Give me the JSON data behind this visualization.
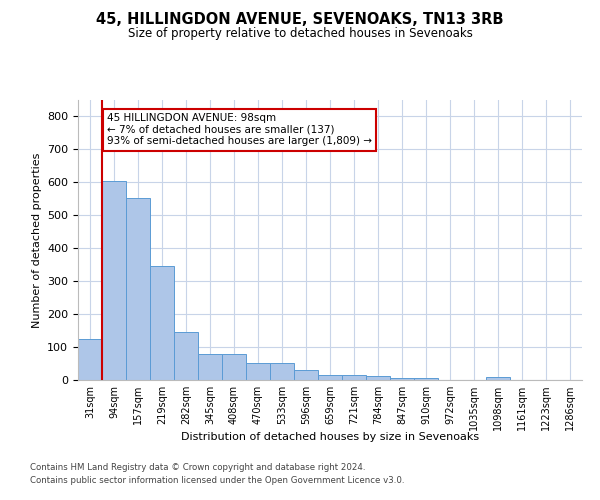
{
  "title1": "45, HILLINGDON AVENUE, SEVENOAKS, TN13 3RB",
  "title2": "Size of property relative to detached houses in Sevenoaks",
  "xlabel": "Distribution of detached houses by size in Sevenoaks",
  "ylabel": "Number of detached properties",
  "categories": [
    "31sqm",
    "94sqm",
    "157sqm",
    "219sqm",
    "282sqm",
    "345sqm",
    "408sqm",
    "470sqm",
    "533sqm",
    "596sqm",
    "659sqm",
    "721sqm",
    "784sqm",
    "847sqm",
    "910sqm",
    "972sqm",
    "1035sqm",
    "1098sqm",
    "1161sqm",
    "1223sqm",
    "1286sqm"
  ],
  "values": [
    123,
    603,
    553,
    347,
    147,
    78,
    78,
    52,
    52,
    30,
    15,
    14,
    13,
    7,
    7,
    0,
    0,
    8,
    0,
    0,
    0
  ],
  "bar_color": "#aec6e8",
  "bar_edge_color": "#5b9bd5",
  "red_line_x": 1,
  "annotation_title": "45 HILLINGDON AVENUE: 98sqm",
  "annotation_line2": "← 7% of detached houses are smaller (137)",
  "annotation_line3": "93% of semi-detached houses are larger (1,809) →",
  "annotation_box_color": "#ffffff",
  "annotation_box_edge": "#cc0000",
  "footer1": "Contains HM Land Registry data © Crown copyright and database right 2024.",
  "footer2": "Contains public sector information licensed under the Open Government Licence v3.0.",
  "ylim": [
    0,
    850
  ],
  "background_color": "#ffffff",
  "grid_color": "#c8d4e8"
}
